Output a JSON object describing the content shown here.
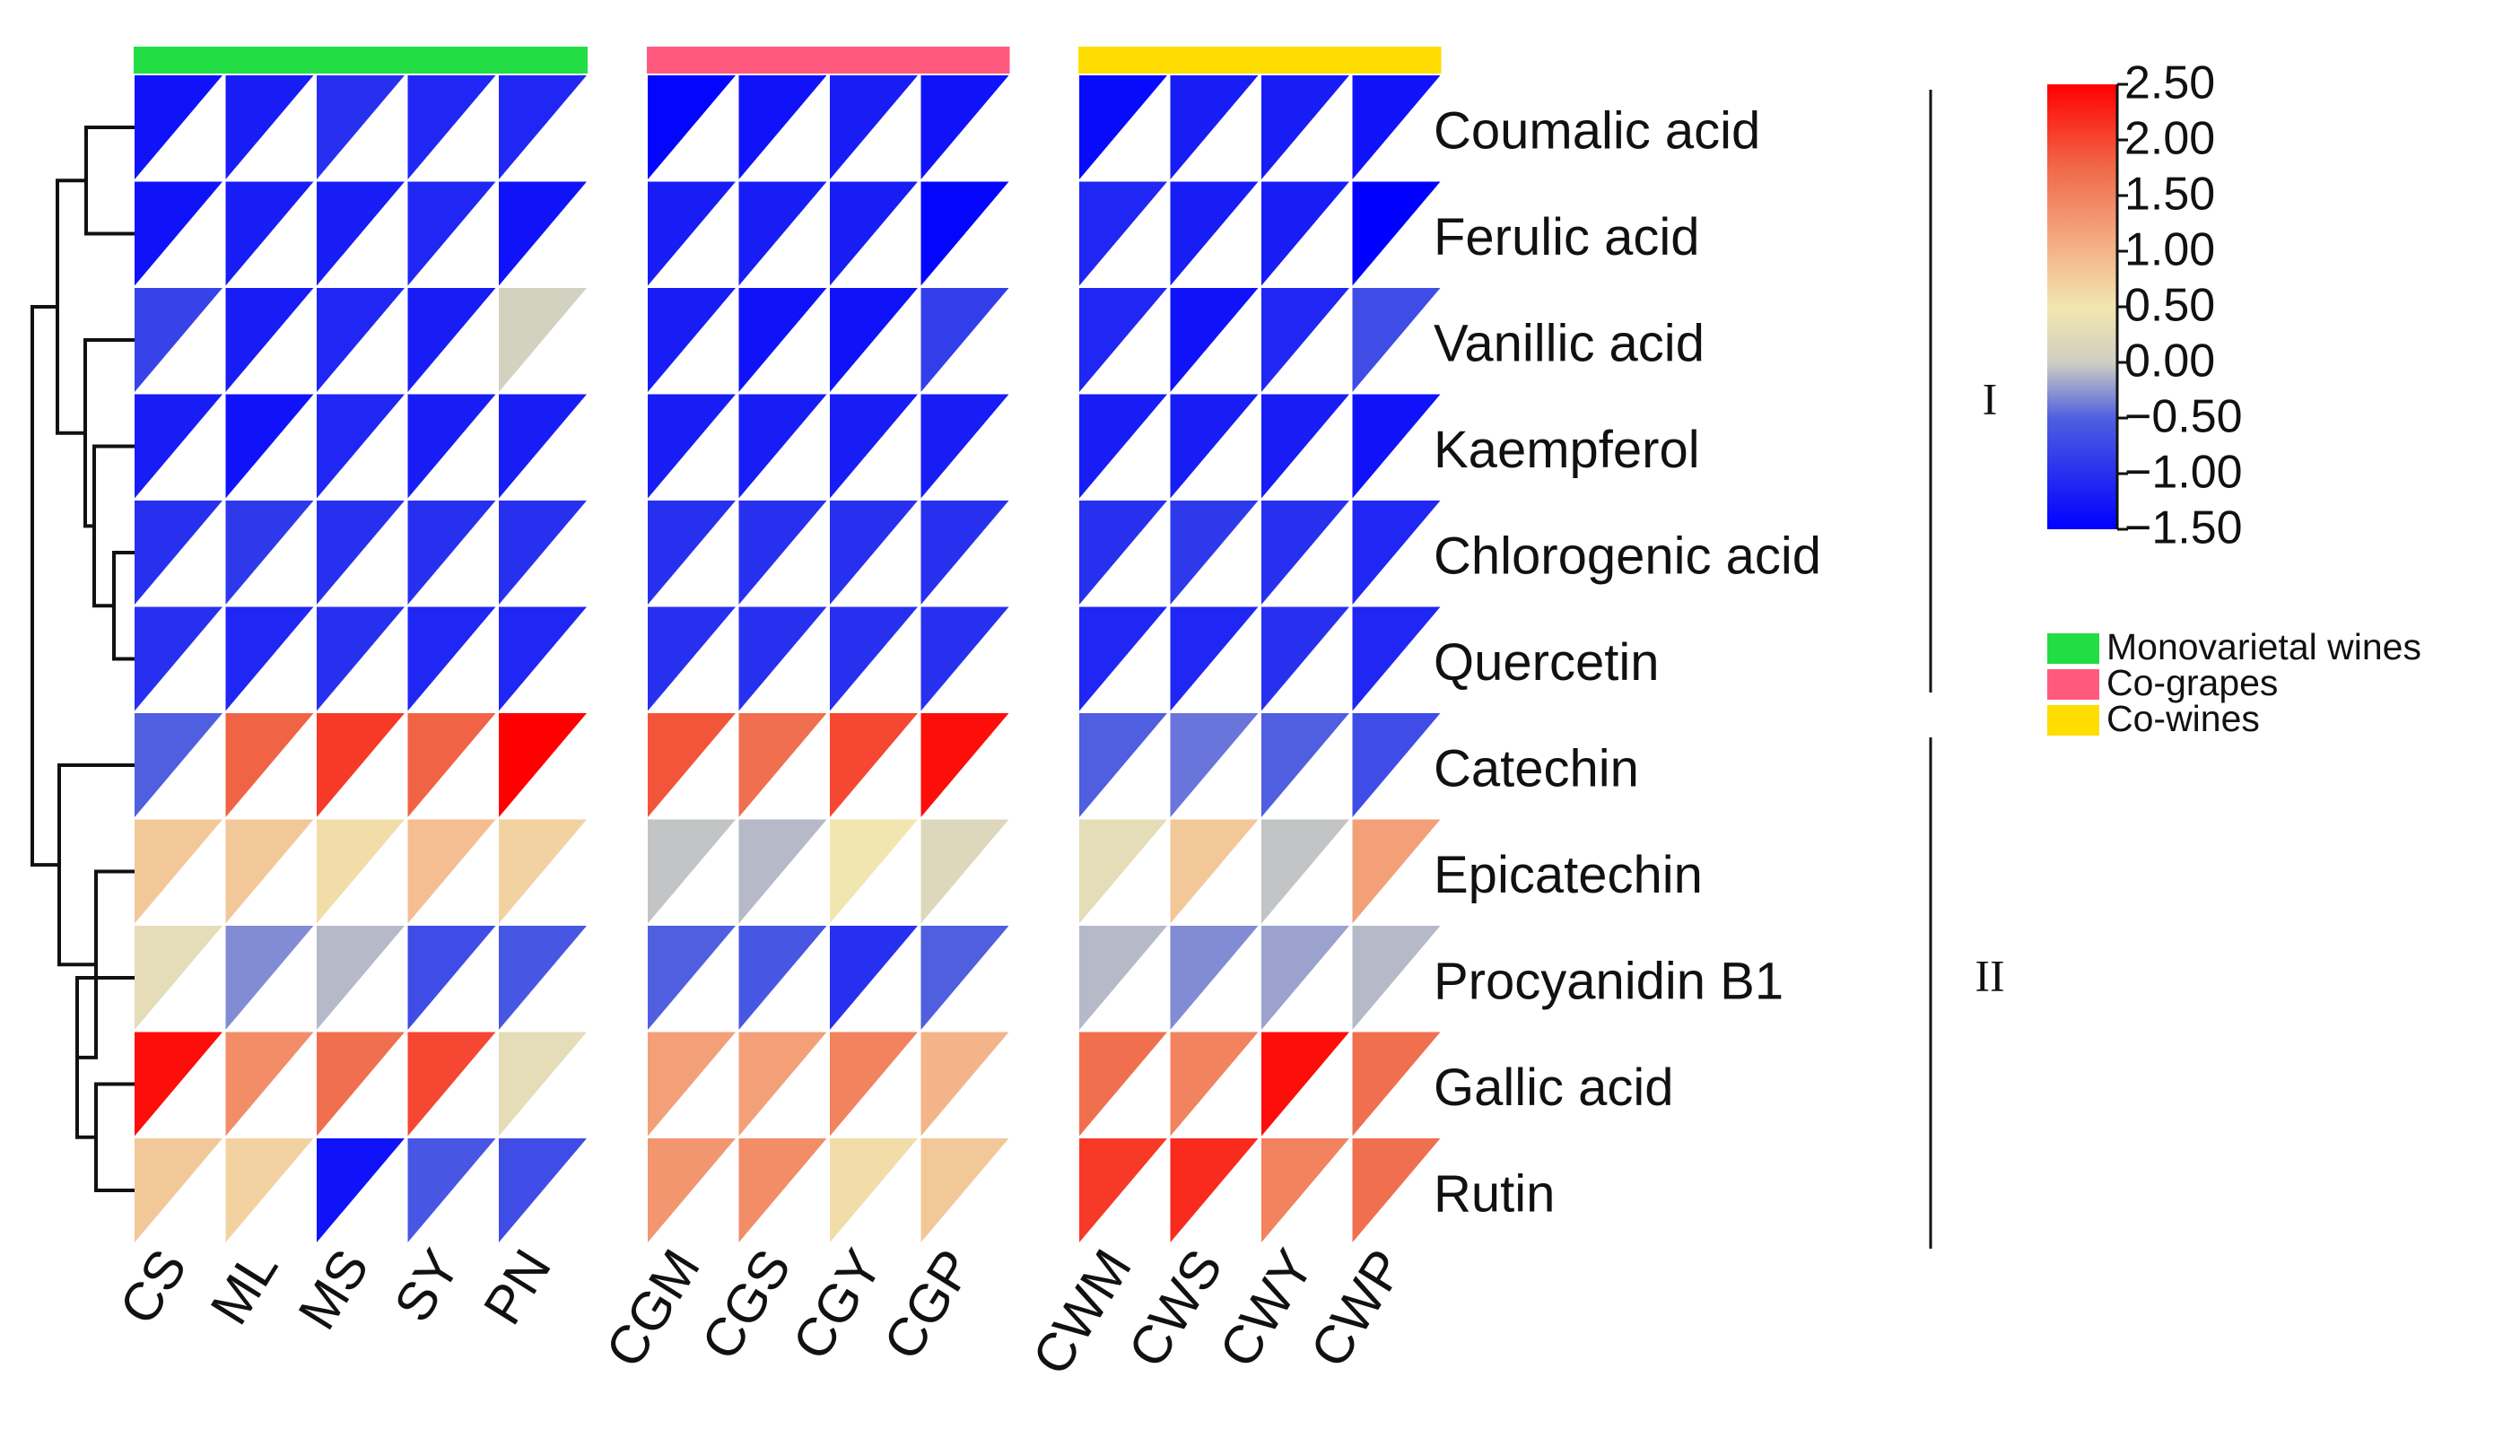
{
  "chart_data": {
    "type": "heatmap",
    "rows": [
      "Coumalic acid",
      "Ferulic acid",
      "Vanillic acid",
      "Kaempferol",
      "Chlorogenic acid",
      "Quercetin",
      "Catechin",
      "Epicatechin",
      "Procyanidin B1",
      "Gallic acid",
      "Rutin"
    ],
    "columns": [
      "CS",
      "ML",
      "MS",
      "SY",
      "PN",
      "CGM",
      "CGS",
      "CGY",
      "CGP",
      "CWM",
      "CWS",
      "CWY",
      "CWP"
    ],
    "column_groups": [
      {
        "name": "Monovarietal wines",
        "color": "#22dd44",
        "columns": [
          "CS",
          "ML",
          "MS",
          "SY",
          "PN"
        ]
      },
      {
        "name": "Co-grapes",
        "color": "#ff5a7e",
        "columns": [
          "CGM",
          "CGS",
          "CGY",
          "CGP"
        ]
      },
      {
        "name": "Co-wines",
        "color": "#ffdd00",
        "columns": [
          "CWM",
          "CWS",
          "CWY",
          "CWP"
        ]
      }
    ],
    "values": [
      [
        -1.3,
        -1.2,
        -1.0,
        -1.1,
        -1.1,
        -1.45,
        -1.3,
        -1.2,
        -1.3,
        -1.4,
        -1.2,
        -1.2,
        -1.3
      ],
      [
        -1.3,
        -1.2,
        -1.2,
        -1.1,
        -1.3,
        -1.2,
        -1.2,
        -1.2,
        -1.45,
        -1.1,
        -1.2,
        -1.2,
        -1.5
      ],
      [
        -0.8,
        -1.2,
        -1.1,
        -1.2,
        0.05,
        -1.2,
        -1.3,
        -1.3,
        -0.85,
        -1.1,
        -1.3,
        -1.1,
        -0.7
      ],
      [
        -1.2,
        -1.3,
        -1.1,
        -1.2,
        -1.2,
        -1.2,
        -1.2,
        -1.2,
        -1.2,
        -1.2,
        -1.2,
        -1.2,
        -1.3
      ],
      [
        -1.0,
        -0.9,
        -1.0,
        -1.0,
        -1.0,
        -1.0,
        -1.0,
        -1.0,
        -1.0,
        -1.0,
        -0.9,
        -1.0,
        -1.1
      ],
      [
        -1.0,
        -1.1,
        -1.0,
        -1.1,
        -1.1,
        -1.0,
        -1.0,
        -1.0,
        -1.0,
        -1.1,
        -1.1,
        -1.0,
        -1.1
      ],
      [
        -0.5,
        1.8,
        2.1,
        1.8,
        2.5,
        1.9,
        1.7,
        2.0,
        2.4,
        -0.5,
        -0.4,
        -0.5,
        -0.7
      ],
      [
        0.8,
        0.8,
        0.6,
        0.9,
        0.7,
        -0.05,
        -0.1,
        0.5,
        0.2,
        0.3,
        0.8,
        -0.05,
        1.2
      ],
      [
        0.3,
        -0.3,
        -0.1,
        -0.7,
        -0.6,
        -0.5,
        -0.6,
        -1.0,
        -0.5,
        -0.1,
        -0.3,
        -0.2,
        -0.1
      ],
      [
        2.4,
        1.4,
        1.7,
        2.0,
        0.3,
        1.2,
        1.2,
        1.5,
        1.0,
        1.7,
        1.5,
        2.4,
        1.7
      ],
      [
        0.8,
        0.7,
        -1.3,
        -0.6,
        -0.7,
        1.3,
        1.4,
        0.6,
        0.8,
        2.1,
        2.2,
        1.5,
        1.7
      ]
    ],
    "colorbar": {
      "min": -1.5,
      "max": 2.5,
      "ticks": [
        "2.50",
        "2.00",
        "1.50",
        "1.00",
        "0.50",
        "0.00",
        "−0.50",
        "−1.00",
        "−1.50"
      ],
      "colors": {
        "low": "#0000ff",
        "mid_low": "#5060dd",
        "mid": "#cfcfbf",
        "mid_high": "#f1e3ac",
        "high": "#ff1a1a"
      }
    },
    "clusters": [
      {
        "label": "I",
        "rows": [
          "Coumalic acid",
          "Ferulic acid",
          "Vanillic acid",
          "Kaempferol",
          "Chlorogenic acid",
          "Quercetin"
        ]
      },
      {
        "label": "II",
        "rows": [
          "Catechin",
          "Epicatechin",
          "Procyanidin B1",
          "Gallic acid",
          "Rutin"
        ]
      }
    ],
    "dendrogram": "left",
    "legend_position": "right"
  }
}
